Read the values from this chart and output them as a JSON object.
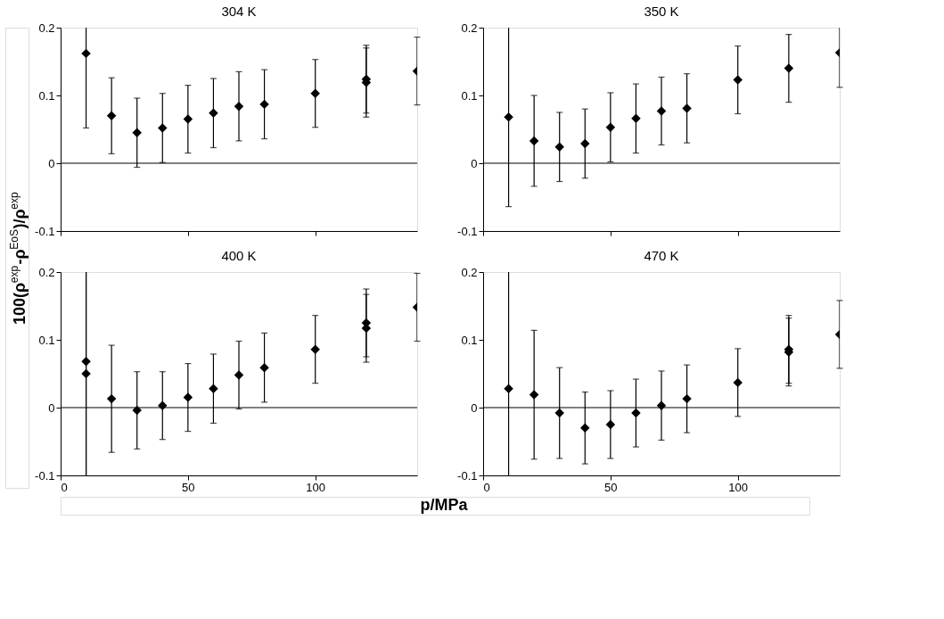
{
  "chart_data": [
    {
      "type": "scatter",
      "title": "304 K",
      "ylabel": "100(ρ$^{exp}$-ρ$^{EoS}$)/ρ$^{exp}$",
      "x": [
        10,
        20,
        30,
        40,
        50,
        60,
        70,
        80,
        100,
        120,
        120,
        140
      ],
      "xlim": [
        0,
        140
      ],
      "xticks": [
        0,
        50,
        100
      ],
      "ylim": [
        -0.1,
        0.2
      ],
      "yticks": [
        -0.1,
        0,
        0.1,
        0.2
      ],
      "tick_labels": "y",
      "marker": "diamond",
      "grid": false,
      "ref_lines": [
        {
          "axis": "y",
          "value": 0,
          "color": "#000000"
        }
      ],
      "series": [
        {
          "color": "#000000",
          "values": [
            0.162,
            0.07,
            0.045,
            0.052,
            0.065,
            0.074,
            0.084,
            0.087,
            0.103,
            0.124,
            0.119,
            0.136
          ],
          "errors": [
            [
              0.052,
              0.2
            ],
            0.056,
            0.051,
            0.051,
            0.05,
            0.051,
            0.051,
            0.051,
            0.05,
            0.05,
            0.051,
            0.05
          ]
        }
      ]
    },
    {
      "type": "scatter",
      "title": "350 K",
      "x": [
        10,
        20,
        30,
        40,
        50,
        60,
        70,
        80,
        100,
        120,
        140
      ],
      "xlim": [
        0,
        140
      ],
      "xticks": [
        0,
        50,
        100
      ],
      "ylim": [
        -0.1,
        0.2
      ],
      "yticks": [
        -0.1,
        0,
        0.1,
        0.2
      ],
      "tick_labels": "y",
      "marker": "diamond",
      "grid": false,
      "ref_lines": [
        {
          "axis": "y",
          "value": 0,
          "color": "#000000"
        }
      ],
      "series": [
        {
          "color": "#000000",
          "values": [
            0.068,
            0.033,
            0.024,
            0.029,
            0.053,
            0.066,
            0.077,
            0.081,
            0.123,
            0.14,
            0.163
          ],
          "errors": [
            [
              -0.064,
              0.2
            ],
            0.067,
            0.051,
            0.051,
            0.051,
            0.051,
            0.05,
            0.051,
            0.05,
            0.05,
            [
              0.112,
              0.2
            ]
          ]
        }
      ]
    },
    {
      "type": "scatter",
      "title": "400 K",
      "xlabel": "p/MPa",
      "x": [
        10,
        10,
        20,
        30,
        40,
        50,
        60,
        70,
        80,
        100,
        120,
        120,
        140
      ],
      "xlim": [
        0,
        140
      ],
      "xticks": [
        0,
        50,
        100
      ],
      "ylim": [
        -0.1,
        0.2
      ],
      "yticks": [
        -0.1,
        0,
        0.1,
        0.2
      ],
      "marker": "diamond",
      "grid": false,
      "ref_lines": [
        {
          "axis": "y",
          "value": 0,
          "color": "#000000"
        }
      ],
      "series": [
        {
          "color": "#000000",
          "values": [
            0.068,
            0.05,
            0.013,
            -0.004,
            0.003,
            0.015,
            0.028,
            0.048,
            0.059,
            0.086,
            0.125,
            0.117,
            0.148
          ],
          "errors": [
            [
              -0.1,
              0.2
            ],
            [
              -0.1,
              0.2
            ],
            0.079,
            0.057,
            0.05,
            0.05,
            0.051,
            0.05,
            0.051,
            0.05,
            0.05,
            0.05,
            0.05
          ]
        }
      ]
    },
    {
      "type": "scatter",
      "title": "470 K",
      "x": [
        10,
        20,
        30,
        40,
        50,
        60,
        70,
        80,
        100,
        120,
        120,
        140
      ],
      "xlim": [
        0,
        140
      ],
      "xticks": [
        0,
        50,
        100
      ],
      "ylim": [
        -0.1,
        0.2
      ],
      "yticks": [
        -0.1,
        0,
        0.1,
        0.2
      ],
      "marker": "diamond",
      "grid": false,
      "ref_lines": [
        {
          "axis": "y",
          "value": 0,
          "color": "#000000"
        }
      ],
      "series": [
        {
          "color": "#000000",
          "values": [
            0.028,
            0.019,
            -0.008,
            -0.03,
            -0.025,
            -0.008,
            0.003,
            0.013,
            0.037,
            0.086,
            0.082,
            0.108
          ],
          "errors": [
            [
              -0.1,
              0.2
            ],
            0.095,
            0.067,
            0.053,
            0.05,
            0.05,
            0.051,
            0.05,
            0.05,
            0.05,
            0.05,
            0.05
          ]
        }
      ]
    }
  ]
}
